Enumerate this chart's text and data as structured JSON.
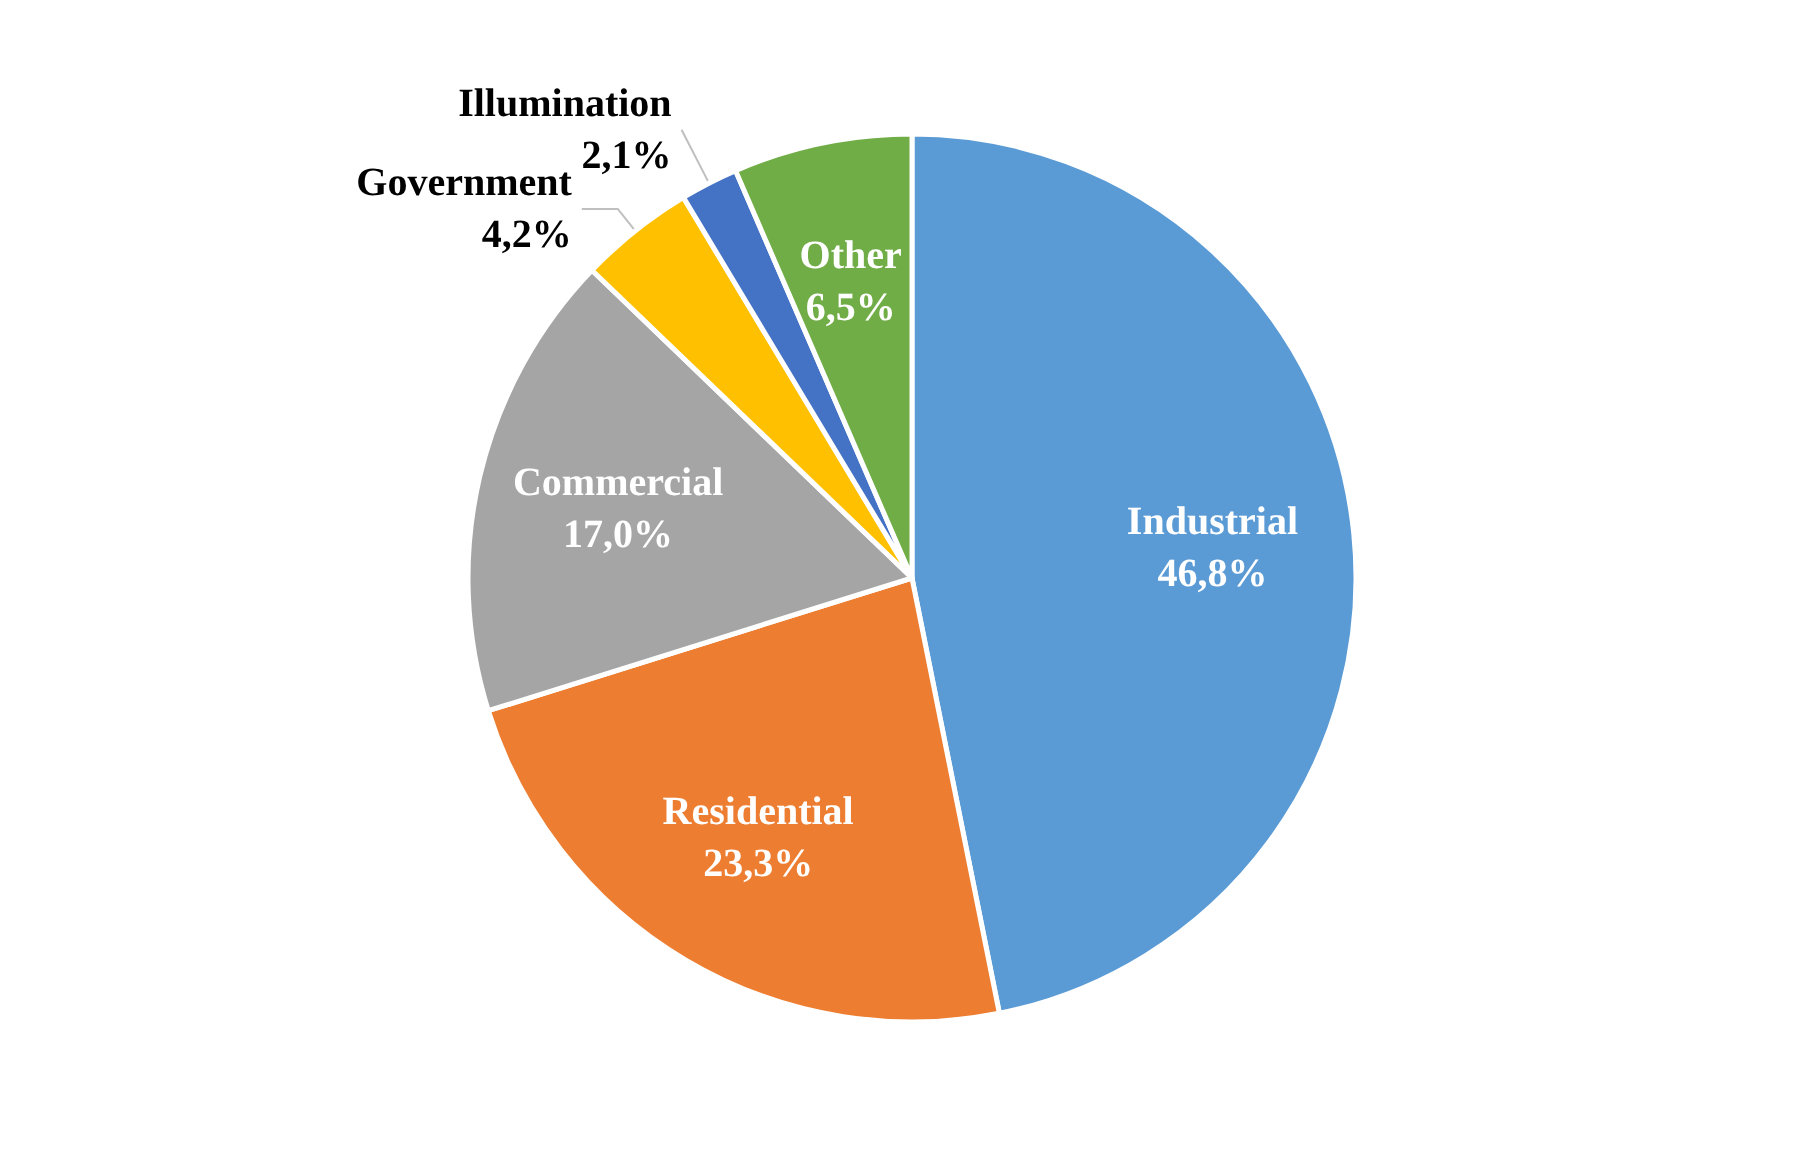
{
  "chart_data": {
    "type": "pie",
    "categories": [
      "Industrial",
      "Residential",
      "Commercial",
      "Government",
      "Illumination",
      "Other"
    ],
    "values": [
      46.8,
      23.3,
      17.0,
      4.2,
      2.1,
      6.5
    ],
    "value_labels": [
      "46,8%",
      "23,3%",
      "17,0%",
      "4,2%",
      "2,1%",
      "6,5%"
    ],
    "colors": [
      "#5b9bd5",
      "#ed7d31",
      "#a5a5a5",
      "#ffc000",
      "#4472c4",
      "#70ad47"
    ],
    "legend": false
  }
}
